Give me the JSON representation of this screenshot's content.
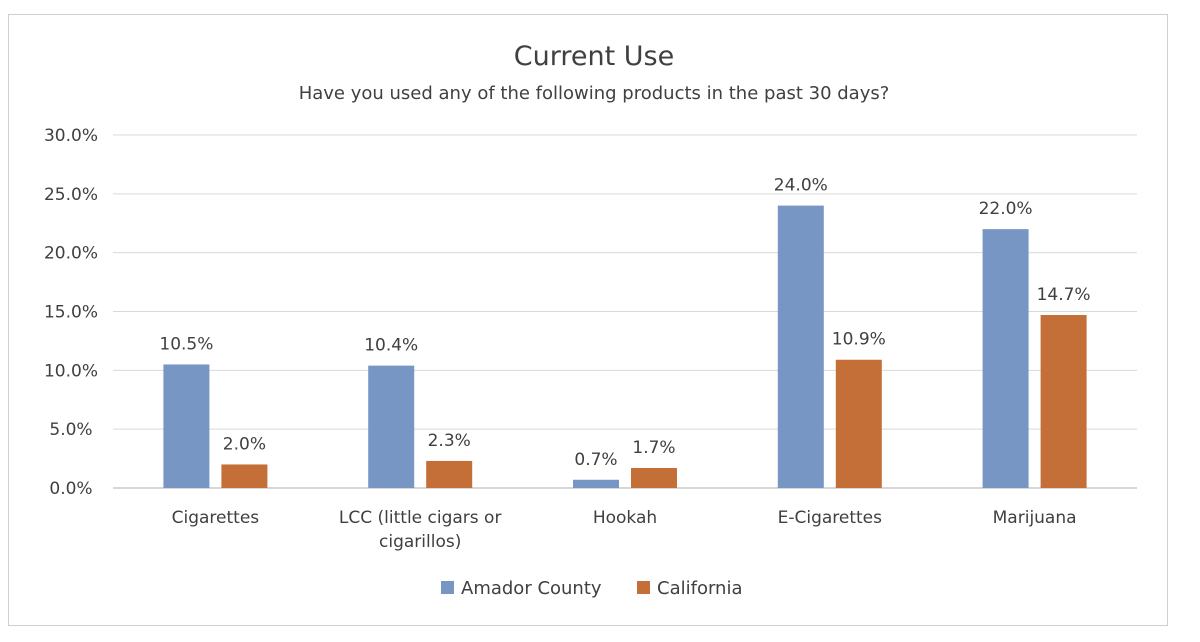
{
  "chart_data": {
    "type": "bar",
    "title": "Current Use",
    "subtitle": "Have you used any of the following products in the past 30 days?",
    "categories": [
      [
        "Cigarettes"
      ],
      [
        "LCC (little cigars or",
        "cigarillos)"
      ],
      [
        "Hookah"
      ],
      [
        "E-Cigarettes"
      ],
      [
        "Marijuana"
      ]
    ],
    "series": [
      {
        "name": "Amador County",
        "color": "#7896c4",
        "values": [
          10.5,
          10.4,
          0.7,
          24.0,
          22.0
        ],
        "labels": [
          "10.5%",
          "10.4%",
          "0.7%",
          "24.0%",
          "22.0%"
        ]
      },
      {
        "name": "California",
        "color": "#c46e38",
        "values": [
          2.0,
          2.3,
          1.7,
          10.9,
          14.7
        ],
        "labels": [
          "2.0%",
          "2.3%",
          "1.7%",
          "10.9%",
          "14.7%"
        ]
      }
    ],
    "ylim": [
      0,
      30
    ],
    "yticks": [
      "0.0%",
      "5.0%",
      "10.0%",
      "15.0%",
      "20.0%",
      "25.0%",
      "30.0%"
    ],
    "ytick_values": [
      0,
      5,
      10,
      15,
      20,
      25,
      30
    ],
    "grid": true,
    "legend_position": "bottom"
  }
}
